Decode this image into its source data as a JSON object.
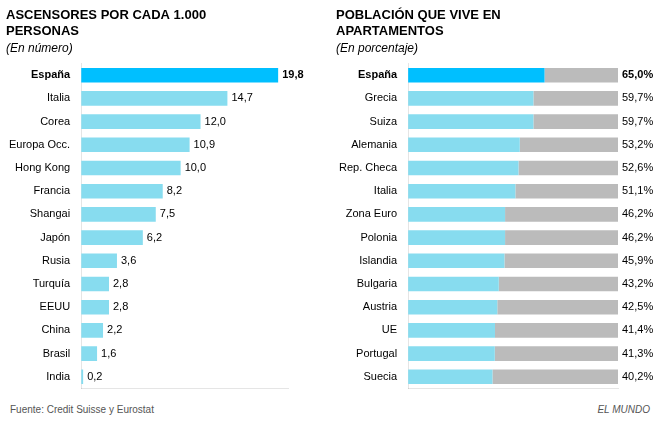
{
  "chart_data": [
    {
      "type": "bar",
      "title": "ASCENSORES POR CADA 1.000\nPERSONAS",
      "subtitle": "(En número)",
      "orientation": "horizontal",
      "categories": [
        "España",
        "Italia",
        "Corea",
        "Europa Occ.",
        "Hong Kong",
        "Francia",
        "Shangai",
        "Japón",
        "Rusia",
        "Turquía",
        "EEUU",
        "China",
        "Brasil",
        "India"
      ],
      "values": [
        19.8,
        14.7,
        12.0,
        10.9,
        10.0,
        8.2,
        7.5,
        6.2,
        3.6,
        2.8,
        2.8,
        2.2,
        1.6,
        0.2
      ],
      "value_labels": [
        "19,8",
        "14,7",
        "12,0",
        "10,9",
        "10,0",
        "8,2",
        "7,5",
        "6,2",
        "3,6",
        "2,8",
        "2,8",
        "2,2",
        "1,6",
        "0,2"
      ],
      "colors": [
        "#00BFFF",
        "#87DCEF",
        "#87DCEF",
        "#87DCEF",
        "#87DCEF",
        "#87DCEF",
        "#87DCEF",
        "#87DCEF",
        "#87DCEF",
        "#87DCEF",
        "#87DCEF",
        "#87DCEF",
        "#87DCEF",
        "#87DCEF"
      ],
      "xlim": [
        0,
        20.79
      ],
      "data_labels": true,
      "tick_labels": "y",
      "grid": false,
      "annotations": [
        "Fuente: Credit Suisse y Eurostat",
        "EL MUNDO"
      ]
    },
    {
      "type": "bar",
      "title": "POBLACIÓN QUE VIVE EN\nAPARTAMENTOS",
      "subtitle": "(En porcentaje)",
      "orientation": "horizontal",
      "stacked": true,
      "categories": [
        "España",
        "Grecia",
        "Suiza",
        "Alemania",
        "Rep. Checa",
        "Italia",
        "Zona Euro",
        "Polonia",
        "Islandia",
        "Bulgaria",
        "Austria",
        "UE",
        "Portugal",
        "Suecia"
      ],
      "series": [
        {
          "values": [
            65.0,
            59.7,
            59.7,
            53.2,
            52.6,
            51.1,
            46.2,
            46.2,
            45.9,
            43.2,
            42.5,
            41.4,
            41.3,
            40.2
          ],
          "value_labels": [
            "65,0%",
            "59,7%",
            "59,7%",
            "53,2%",
            "52,6%",
            "51,1%",
            "46,2%",
            "46,2%",
            "45,9%",
            "43,2%",
            "42,5%",
            "41,4%",
            "41,3%",
            "40,2%"
          ],
          "colors": [
            "#00BFFF",
            "#87DCEF",
            "#87DCEF",
            "#87DCEF",
            "#87DCEF",
            "#87DCEF",
            "#87DCEF",
            "#87DCEF",
            "#87DCEF",
            "#87DCEF",
            "#87DCEF",
            "#87DCEF",
            "#87DCEF",
            "#87DCEF"
          ]
        },
        {
          "values": [
            35.0,
            40.3,
            40.3,
            46.8,
            47.4,
            48.9,
            53.8,
            53.8,
            54.1,
            56.8,
            57.5,
            58.6,
            58.7,
            59.8
          ],
          "color": "#BBBBBB"
        }
      ],
      "xlim": [
        0,
        100
      ],
      "data_labels": true,
      "tick_labels": "y",
      "grid": false
    }
  ]
}
